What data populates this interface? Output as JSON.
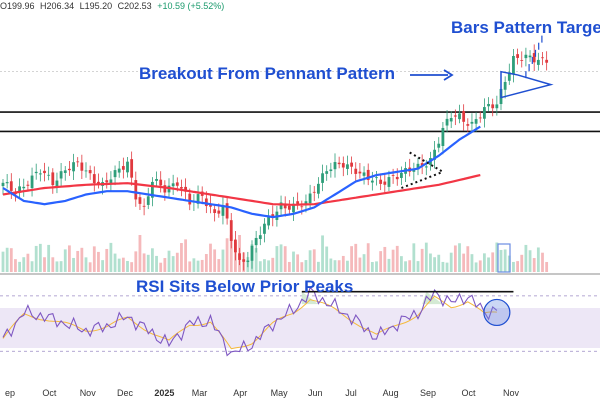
{
  "header": {
    "open": "O199.96",
    "high": "H206.34",
    "low": "L195.20",
    "close": "C202.53",
    "change": "+10.59 (+5.52%)"
  },
  "colors": {
    "up": "#2e9e7a",
    "down": "#e0393e",
    "ma_fast": "#2962ff",
    "ma_slow": "#f23645",
    "annotation": "#1f4fd1",
    "rsi_line": "#7e57c2",
    "rsi_signal": "#f5b93a",
    "rsi_band": "#ede7f6"
  },
  "annotations": {
    "target": "Bars Pattern Targe",
    "breakout": "Breakout From Pennant Pattern",
    "rsi": "RSI Sits Below Prior Peaks"
  },
  "chart_data": {
    "type": "line",
    "x_ticks": [
      "ep",
      "Oct",
      "Nov",
      "Dec",
      "2025",
      "Mar",
      "Apr",
      "May",
      "Jun",
      "Jul",
      "Aug",
      "Sep",
      "Oct",
      "Nov"
    ],
    "x_tick_index": [
      0,
      9,
      18,
      27,
      36,
      45,
      55,
      64,
      73,
      82,
      91,
      100,
      110,
      120
    ],
    "n_bars": 132,
    "price_anchors": [
      [
        0,
        177
      ],
      [
        3,
        175
      ],
      [
        6,
        178
      ],
      [
        9,
        181
      ],
      [
        12,
        178
      ],
      [
        15,
        182
      ],
      [
        18,
        183
      ],
      [
        21,
        180
      ],
      [
        24,
        177
      ],
      [
        27,
        180
      ],
      [
        30,
        184
      ],
      [
        32,
        174
      ],
      [
        34,
        169
      ],
      [
        36,
        178
      ],
      [
        39,
        176
      ],
      [
        42,
        178
      ],
      [
        45,
        171
      ],
      [
        48,
        174
      ],
      [
        51,
        168
      ],
      [
        53,
        170
      ],
      [
        55,
        160
      ],
      [
        57,
        153
      ],
      [
        59,
        155
      ],
      [
        61,
        160
      ],
      [
        64,
        166
      ],
      [
        67,
        171
      ],
      [
        70,
        170
      ],
      [
        73,
        171
      ],
      [
        75,
        176
      ],
      [
        78,
        182
      ],
      [
        82,
        183
      ],
      [
        85,
        182
      ],
      [
        88,
        179
      ],
      [
        91,
        177
      ],
      [
        94,
        180
      ],
      [
        97,
        181
      ],
      [
        100,
        182
      ],
      [
        103,
        185
      ],
      [
        106,
        194
      ],
      [
        108,
        198
      ],
      [
        110,
        198
      ],
      [
        113,
        196
      ],
      [
        116,
        200
      ],
      [
        119,
        202
      ],
      [
        121,
        210
      ],
      [
        123,
        216
      ]
    ],
    "ma_fast_anchors": [
      [
        0,
        176
      ],
      [
        5,
        172
      ],
      [
        10,
        171
      ],
      [
        15,
        172
      ],
      [
        20,
        174
      ],
      [
        25,
        175
      ],
      [
        30,
        175
      ],
      [
        35,
        174
      ],
      [
        40,
        173
      ],
      [
        45,
        172
      ],
      [
        50,
        171
      ],
      [
        55,
        170
      ],
      [
        60,
        168
      ],
      [
        65,
        167
      ],
      [
        70,
        168
      ],
      [
        75,
        170
      ],
      [
        80,
        174
      ],
      [
        85,
        178
      ],
      [
        90,
        180
      ],
      [
        95,
        181
      ],
      [
        100,
        182
      ],
      [
        105,
        186
      ],
      [
        110,
        191
      ],
      [
        115,
        195
      ]
    ],
    "ma_slow_anchors": [
      [
        0,
        174
      ],
      [
        10,
        176
      ],
      [
        20,
        177
      ],
      [
        30,
        177.5
      ],
      [
        40,
        176
      ],
      [
        50,
        174
      ],
      [
        55,
        173
      ],
      [
        60,
        172
      ],
      [
        65,
        171
      ],
      [
        70,
        170.8
      ],
      [
        75,
        171
      ],
      [
        80,
        172
      ],
      [
        85,
        173
      ],
      [
        90,
        174
      ],
      [
        95,
        175
      ],
      [
        100,
        176
      ],
      [
        105,
        177
      ],
      [
        110,
        178.5
      ],
      [
        115,
        180
      ]
    ],
    "rsi_anchors": [
      [
        0,
        38
      ],
      [
        5,
        58
      ],
      [
        10,
        55
      ],
      [
        15,
        50
      ],
      [
        20,
        45
      ],
      [
        25,
        48
      ],
      [
        30,
        55
      ],
      [
        35,
        45
      ],
      [
        40,
        35
      ],
      [
        45,
        50
      ],
      [
        50,
        52
      ],
      [
        55,
        28
      ],
      [
        60,
        35
      ],
      [
        65,
        50
      ],
      [
        70,
        60
      ],
      [
        74,
        72
      ],
      [
        80,
        62
      ],
      [
        85,
        52
      ],
      [
        90,
        40
      ],
      [
        95,
        50
      ],
      [
        100,
        58
      ],
      [
        104,
        72
      ],
      [
        108,
        65
      ],
      [
        112,
        70
      ],
      [
        116,
        58
      ],
      [
        119,
        60
      ]
    ],
    "rsi_levels": [
      30,
      70
    ],
    "resistance_levels": [
      199.5,
      193.5
    ],
    "rsi_peak_level": 73,
    "price_ylim": [
      150,
      228
    ],
    "rsi_ylim": [
      15,
      80
    ]
  }
}
